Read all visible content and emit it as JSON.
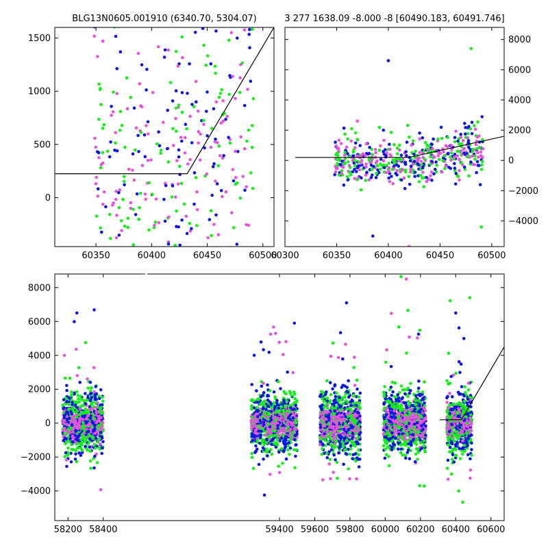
{
  "chart_data": [
    {
      "id": "top-left",
      "type": "scatter",
      "title": "BLG13N0605.001910 (6340.70, 5304.07)",
      "xlim": [
        60313,
        60510
      ],
      "ylim": [
        -460,
        1600
      ],
      "xticks": [
        60350,
        60400,
        60450,
        60500
      ],
      "yticks": [
        0,
        500,
        1000,
        1500
      ],
      "ytick_side": "left",
      "colors": {
        "blue": "#0b16e6",
        "green": "#12f212",
        "magenta": "#e852e0"
      },
      "model_line": [
        [
          60313,
          225
        ],
        [
          60432,
          225
        ],
        [
          60510,
          1600
        ]
      ],
      "scatter": {
        "seed": 11,
        "n": 420,
        "x_range": [
          60348,
          60492
        ],
        "base": 80,
        "slope": 0.12,
        "spread": 950
      },
      "approx_points": [
        [
          60350,
          130
        ],
        [
          60372,
          1370
        ],
        [
          60390,
          40
        ],
        [
          60430,
          420
        ],
        [
          60440,
          900
        ],
        [
          60460,
          300
        ],
        [
          60480,
          1250
        ],
        [
          60488,
          1580
        ]
      ]
    },
    {
      "id": "top-right",
      "type": "scatter",
      "title": "3 277 1638.09 -8.000 -8 [60490.183, 60491.746]",
      "xlim": [
        60300,
        60512
      ],
      "ylim": [
        -5700,
        8800
      ],
      "xticks": [
        60300,
        60350,
        60400,
        60450,
        60500
      ],
      "yticks": [
        -4000,
        -2000,
        0,
        2000,
        4000,
        6000,
        8000
      ],
      "ytick_side": "right",
      "colors": {
        "blue": "#0b16e6",
        "green": "#12f212",
        "magenta": "#e852e0"
      },
      "model_line": [
        [
          60310,
          200
        ],
        [
          60420,
          200
        ],
        [
          60512,
          1600
        ]
      ],
      "scatter": {
        "seed": 23,
        "n": 520,
        "x_range": [
          60348,
          60492
        ],
        "base": 0,
        "slope": 0,
        "spread": 900
      },
      "approx_points": [
        [
          60370,
          2600
        ],
        [
          60400,
          6600
        ],
        [
          60480,
          7400
        ],
        [
          60420,
          -5700
        ],
        [
          60385,
          -5000
        ],
        [
          60490,
          -4400
        ]
      ]
    },
    {
      "id": "bottom",
      "type": "scatter",
      "title": "",
      "xlim": [
        58125,
        60675
      ],
      "ylim": [
        -5750,
        8800
      ],
      "xticks": [
        58200,
        58400,
        59400,
        59600,
        59800,
        60000,
        60200,
        60400,
        60600
      ],
      "yticks": [
        -4000,
        -2000,
        0,
        2000,
        4000,
        6000,
        8000
      ],
      "ytick_side": "left",
      "colors": {
        "blue": "#0b16e6",
        "green": "#12f212",
        "magenta": "#e852e0"
      },
      "model_line": [
        [
          60310,
          200
        ],
        [
          60432,
          200
        ],
        [
          60675,
          4500
        ]
      ],
      "seasons": [
        {
          "x_range": [
            58170,
            58400
          ],
          "seed": 31,
          "n": 900
        },
        {
          "x_range": [
            59240,
            59500
          ],
          "seed": 37,
          "n": 1000
        },
        {
          "x_range": [
            59630,
            59860
          ],
          "seed": 41,
          "n": 1000
        },
        {
          "x_range": [
            59990,
            60230
          ],
          "seed": 43,
          "n": 1000
        },
        {
          "x_range": [
            60350,
            60492
          ],
          "seed": 47,
          "n": 650
        }
      ],
      "approx_points": [
        [
          58180,
          4000
        ],
        [
          58250,
          6500
        ],
        [
          58300,
          4750
        ],
        [
          59350,
          5250
        ],
        [
          59780,
          7100
        ],
        [
          60090,
          8650
        ],
        [
          60120,
          8500
        ],
        [
          60400,
          6500
        ],
        [
          60480,
          7400
        ]
      ]
    }
  ]
}
